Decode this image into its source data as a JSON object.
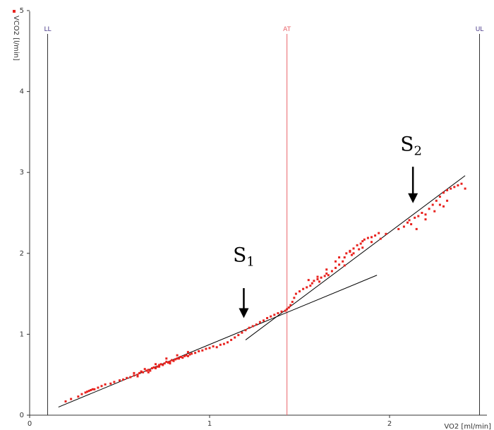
{
  "chart_data": {
    "type": "scatter",
    "x_axis": {
      "label": "VO2 [ml/min]",
      "range": [
        0,
        2.55
      ],
      "ticks": [
        "0",
        "1",
        "2"
      ],
      "tick_values": [
        0,
        1,
        2
      ]
    },
    "y_axis": {
      "label": "VCO2 [l/min]",
      "range": [
        0,
        5
      ],
      "ticks": [
        "0",
        "1",
        "2",
        "3",
        "4",
        "5"
      ],
      "tick_values": [
        0,
        1,
        2,
        3,
        4,
        5
      ]
    },
    "legend": {
      "marker_color": "#e8231f",
      "placement": "top-left"
    },
    "vertical_lines": [
      {
        "name": "LL",
        "x": 0.1,
        "color": "#333333"
      },
      {
        "name": "AT",
        "x": 1.43,
        "color": "#e9646a"
      },
      {
        "name": "UL",
        "x": 2.5,
        "color": "#333333"
      }
    ],
    "regression_lines": [
      {
        "name": "S1",
        "x": [
          0.16,
          1.93
        ],
        "y": [
          0.1,
          1.73
        ]
      },
      {
        "name": "S2",
        "x": [
          1.2,
          2.42
        ],
        "y": [
          0.93,
          2.96
        ]
      }
    ],
    "annotations": [
      {
        "text": "S",
        "subscript": "1",
        "arrow_x": 1.19,
        "arrow_y_top": 1.57,
        "arrow_y_tip": 1.2,
        "label_x": 1.13,
        "label_y": 1.9
      },
      {
        "text": "S",
        "subscript": "2",
        "arrow_x": 2.13,
        "arrow_y_top": 3.07,
        "arrow_y_tip": 2.62,
        "label_x": 2.06,
        "label_y": 3.27
      }
    ],
    "series_color": "#e8231f",
    "points": [
      [
        0.2,
        0.17
      ],
      [
        0.23,
        0.2
      ],
      [
        0.27,
        0.23
      ],
      [
        0.29,
        0.26
      ],
      [
        0.31,
        0.28
      ],
      [
        0.32,
        0.29
      ],
      [
        0.33,
        0.3
      ],
      [
        0.34,
        0.31
      ],
      [
        0.35,
        0.32
      ],
      [
        0.36,
        0.32
      ],
      [
        0.38,
        0.34
      ],
      [
        0.4,
        0.36
      ],
      [
        0.42,
        0.38
      ],
      [
        0.45,
        0.39
      ],
      [
        0.47,
        0.41
      ],
      [
        0.5,
        0.43
      ],
      [
        0.52,
        0.44
      ],
      [
        0.54,
        0.46
      ],
      [
        0.56,
        0.47
      ],
      [
        0.58,
        0.49
      ],
      [
        0.6,
        0.5
      ],
      [
        0.61,
        0.52
      ],
      [
        0.62,
        0.54
      ],
      [
        0.63,
        0.53
      ],
      [
        0.65,
        0.55
      ],
      [
        0.66,
        0.56
      ],
      [
        0.67,
        0.55
      ],
      [
        0.68,
        0.58
      ],
      [
        0.69,
        0.59
      ],
      [
        0.7,
        0.58
      ],
      [
        0.71,
        0.6
      ],
      [
        0.72,
        0.62
      ],
      [
        0.73,
        0.63
      ],
      [
        0.74,
        0.62
      ],
      [
        0.75,
        0.64
      ],
      [
        0.76,
        0.66
      ],
      [
        0.77,
        0.65
      ],
      [
        0.78,
        0.66
      ],
      [
        0.79,
        0.68
      ],
      [
        0.8,
        0.67
      ],
      [
        0.81,
        0.69
      ],
      [
        0.82,
        0.7
      ],
      [
        0.83,
        0.7
      ],
      [
        0.84,
        0.72
      ],
      [
        0.85,
        0.71
      ],
      [
        0.86,
        0.73
      ],
      [
        0.87,
        0.74
      ],
      [
        0.88,
        0.73
      ],
      [
        0.89,
        0.75
      ],
      [
        0.9,
        0.76
      ],
      [
        0.92,
        0.77
      ],
      [
        0.94,
        0.79
      ],
      [
        0.96,
        0.8
      ],
      [
        0.98,
        0.82
      ],
      [
        1.0,
        0.83
      ],
      [
        1.02,
        0.85
      ],
      [
        1.04,
        0.84
      ],
      [
        1.06,
        0.87
      ],
      [
        1.08,
        0.88
      ],
      [
        1.1,
        0.9
      ],
      [
        1.12,
        0.93
      ],
      [
        1.14,
        0.96
      ],
      [
        1.16,
        0.99
      ],
      [
        1.18,
        1.02
      ],
      [
        1.2,
        1.05
      ],
      [
        1.22,
        1.08
      ],
      [
        1.24,
        1.1
      ],
      [
        1.26,
        1.12
      ],
      [
        1.28,
        1.15
      ],
      [
        1.3,
        1.17
      ],
      [
        1.32,
        1.2
      ],
      [
        1.34,
        1.22
      ],
      [
        1.36,
        1.24
      ],
      [
        1.38,
        1.26
      ],
      [
        1.4,
        1.28
      ],
      [
        1.42,
        1.29
      ],
      [
        1.43,
        1.31
      ],
      [
        1.44,
        1.33
      ],
      [
        1.45,
        1.36
      ],
      [
        1.46,
        1.4
      ],
      [
        1.47,
        1.45
      ],
      [
        1.48,
        1.5
      ],
      [
        1.5,
        1.53
      ],
      [
        1.52,
        1.56
      ],
      [
        1.54,
        1.58
      ],
      [
        1.56,
        1.6
      ],
      [
        1.57,
        1.63
      ],
      [
        1.58,
        1.66
      ],
      [
        1.6,
        1.68
      ],
      [
        1.61,
        1.65
      ],
      [
        1.62,
        1.7
      ],
      [
        1.64,
        1.72
      ],
      [
        1.65,
        1.75
      ],
      [
        1.66,
        1.73
      ],
      [
        1.68,
        1.78
      ],
      [
        1.7,
        1.82
      ],
      [
        1.72,
        1.86
      ],
      [
        1.74,
        1.9
      ],
      [
        1.75,
        1.95
      ],
      [
        1.76,
        2.0
      ],
      [
        1.78,
        2.03
      ],
      [
        1.79,
        1.98
      ],
      [
        1.8,
        2.06
      ],
      [
        1.82,
        2.1
      ],
      [
        1.83,
        2.05
      ],
      [
        1.84,
        2.12
      ],
      [
        1.85,
        2.15
      ],
      [
        1.86,
        2.17
      ],
      [
        1.88,
        2.19
      ],
      [
        1.9,
        2.2
      ],
      [
        1.92,
        2.22
      ],
      [
        1.94,
        2.25
      ],
      [
        1.95,
        2.18
      ],
      [
        1.98,
        2.24
      ],
      [
        2.05,
        2.3
      ],
      [
        2.08,
        2.33
      ],
      [
        2.1,
        2.38
      ],
      [
        2.11,
        2.41
      ],
      [
        2.12,
        2.36
      ],
      [
        2.14,
        2.44
      ],
      [
        2.16,
        2.46
      ],
      [
        2.18,
        2.5
      ],
      [
        2.2,
        2.48
      ],
      [
        2.22,
        2.55
      ],
      [
        2.24,
        2.6
      ],
      [
        2.26,
        2.65
      ],
      [
        2.28,
        2.7
      ],
      [
        2.3,
        2.75
      ],
      [
        2.32,
        2.78
      ],
      [
        2.34,
        2.8
      ],
      [
        2.36,
        2.82
      ],
      [
        2.38,
        2.84
      ],
      [
        2.4,
        2.86
      ],
      [
        2.42,
        2.8
      ],
      [
        2.28,
        2.6
      ],
      [
        2.3,
        2.58
      ],
      [
        2.32,
        2.65
      ],
      [
        2.2,
        2.42
      ],
      [
        2.25,
        2.52
      ],
      [
        2.15,
        2.3
      ],
      [
        0.58,
        0.52
      ],
      [
        0.64,
        0.57
      ],
      [
        0.7,
        0.63
      ],
      [
        0.76,
        0.7
      ],
      [
        0.82,
        0.74
      ],
      [
        0.88,
        0.78
      ],
      [
        0.6,
        0.48
      ],
      [
        0.66,
        0.53
      ],
      [
        0.72,
        0.6
      ],
      [
        0.78,
        0.64
      ],
      [
        1.55,
        1.67
      ],
      [
        1.6,
        1.71
      ],
      [
        1.65,
        1.8
      ],
      [
        1.7,
        1.9
      ],
      [
        1.75,
        1.85
      ],
      [
        1.8,
        2.0
      ],
      [
        1.85,
        2.07
      ],
      [
        1.9,
        2.14
      ],
      [
        1.72,
        1.95
      ],
      [
        1.78,
        2.02
      ]
    ]
  }
}
